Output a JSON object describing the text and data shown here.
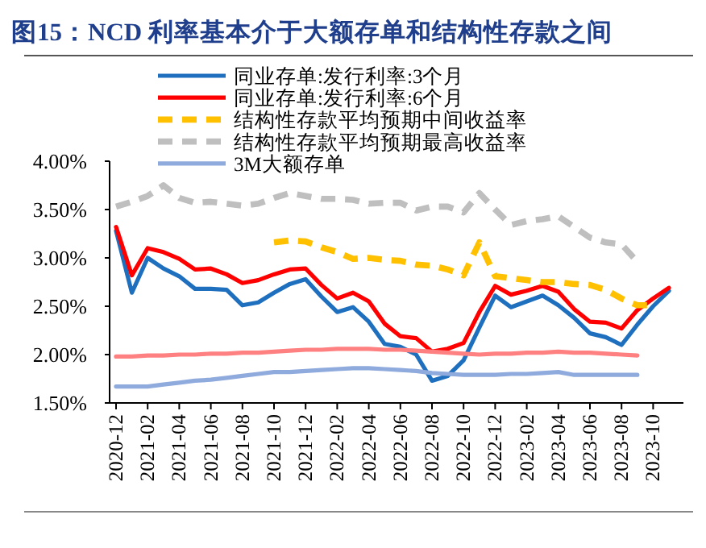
{
  "chart_data": {
    "type": "line",
    "title": "图15：NCD 利率基本介于大额存单和结构性存款之间",
    "categories": [
      "2020-12",
      null,
      "2021-02",
      null,
      "2021-04",
      null,
      "2021-06",
      null,
      "2021-08",
      null,
      "2021-10",
      null,
      "2021-12",
      null,
      "2022-02",
      null,
      "2022-04",
      null,
      "2022-06",
      null,
      "2022-08",
      null,
      "2022-10",
      null,
      "2022-12",
      null,
      "2023-02",
      null,
      "2023-04",
      null,
      "2023-06",
      null,
      "2023-08",
      null,
      "2023-10",
      null
    ],
    "ylim": [
      1.5,
      4.0
    ],
    "yticks": [
      {
        "value": 1.5,
        "label": "1.50%"
      },
      {
        "value": 2.0,
        "label": "2.00%"
      },
      {
        "value": 2.5,
        "label": "2.50%"
      },
      {
        "value": 3.0,
        "label": "3.00%"
      },
      {
        "value": 3.5,
        "label": "3.50%"
      },
      {
        "value": 4.0,
        "label": "4.00%"
      }
    ],
    "grid": false,
    "legend": "top left",
    "series": [
      {
        "name": "同业存单:发行利率:3个月",
        "color": "#1f6fbf",
        "line_style": "solid",
        "values": [
          3.28,
          2.64,
          3.0,
          2.89,
          2.81,
          2.68,
          2.68,
          2.67,
          2.51,
          2.54,
          2.64,
          2.73,
          2.78,
          2.6,
          2.44,
          2.49,
          2.34,
          2.11,
          2.08,
          2.0,
          1.73,
          1.78,
          1.94,
          2.28,
          2.61,
          2.49,
          2.55,
          2.61,
          2.51,
          2.38,
          2.22,
          2.18,
          2.1,
          2.31,
          2.5,
          2.66
        ]
      },
      {
        "name": "同业存单:发行利率:6个月",
        "color": "#ff0000",
        "line_style": "solid",
        "values": [
          3.32,
          2.82,
          3.1,
          3.06,
          2.99,
          2.88,
          2.89,
          2.83,
          2.74,
          2.77,
          2.83,
          2.88,
          2.89,
          2.72,
          2.58,
          2.64,
          2.55,
          2.32,
          2.19,
          2.17,
          2.03,
          2.06,
          2.12,
          2.44,
          2.71,
          2.62,
          2.66,
          2.71,
          2.65,
          2.47,
          2.34,
          2.33,
          2.27,
          2.46,
          2.58,
          2.69
        ]
      },
      {
        "name": "结构性存款平均预期中间收益率",
        "color": "#ffc000",
        "line_style": "dashed",
        "values": [
          null,
          null,
          null,
          null,
          null,
          null,
          null,
          null,
          null,
          null,
          3.16,
          3.18,
          3.17,
          3.11,
          3.06,
          2.99,
          3.0,
          2.98,
          2.97,
          2.93,
          2.92,
          2.88,
          2.82,
          3.16,
          2.81,
          2.79,
          2.77,
          2.75,
          2.75,
          2.73,
          2.72,
          2.67,
          2.58,
          2.51,
          2.51,
          null
        ]
      },
      {
        "name": "结构性存款平均预期最高收益率",
        "color": "#bfbfbf",
        "line_style": "dashed",
        "values": [
          3.53,
          3.58,
          3.64,
          3.75,
          3.62,
          3.57,
          3.58,
          3.56,
          3.54,
          3.56,
          3.62,
          3.67,
          3.64,
          3.61,
          3.61,
          3.6,
          3.56,
          3.57,
          3.57,
          3.49,
          3.53,
          3.53,
          3.47,
          3.67,
          3.5,
          3.34,
          3.38,
          3.4,
          3.43,
          3.32,
          3.21,
          3.16,
          3.14,
          2.96,
          null,
          null
        ]
      },
      {
        "name": "3M大额存单",
        "color": "#8faadc",
        "line_style": "solid",
        "values": [
          1.67,
          1.67,
          1.67,
          1.69,
          1.71,
          1.73,
          1.74,
          1.76,
          1.78,
          1.8,
          1.82,
          1.82,
          1.83,
          1.84,
          1.85,
          1.86,
          1.86,
          1.85,
          1.84,
          1.83,
          1.81,
          1.8,
          1.79,
          1.79,
          1.79,
          1.8,
          1.8,
          1.81,
          1.82,
          1.79,
          1.79,
          1.79,
          1.79,
          1.79,
          null,
          null
        ]
      },
      {
        "color": "#ff8080",
        "line_style": "solid",
        "values": [
          1.98,
          1.98,
          1.99,
          1.99,
          2.0,
          2.0,
          2.01,
          2.01,
          2.02,
          2.02,
          2.03,
          2.04,
          2.05,
          2.05,
          2.06,
          2.06,
          2.06,
          2.05,
          2.05,
          2.04,
          2.03,
          2.02,
          2.01,
          2.0,
          2.01,
          2.01,
          2.02,
          2.02,
          2.03,
          2.02,
          2.02,
          2.01,
          2.0,
          1.99,
          null,
          null
        ]
      }
    ]
  }
}
